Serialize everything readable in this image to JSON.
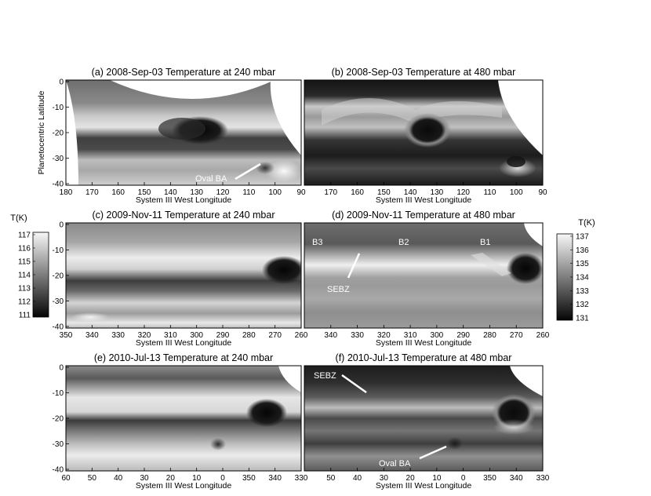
{
  "colors": {
    "frame": "#000000",
    "annotation": "#ffffff",
    "background": "#ffffff"
  },
  "colorbars": [
    {
      "title": "T(K)",
      "ticks": [
        "117",
        "116",
        "115",
        "114",
        "113",
        "112",
        "111"
      ],
      "min": 111,
      "max": 117
    },
    {
      "title": "T(K)",
      "ticks": [
        "137",
        "136",
        "135",
        "134",
        "133",
        "132",
        "131"
      ],
      "min": 131,
      "max": 137
    }
  ],
  "panels": [
    {
      "title": "(a) 2008-Sep-03 Temperature at 240 mbar",
      "xlabel": "System III West Longitude",
      "ylabel": "Planetocentric Latitude",
      "xticks": [
        "180",
        "170",
        "160",
        "150",
        "140",
        "130",
        "120",
        "110",
        "100",
        "90"
      ],
      "yticks": [
        "0",
        "-10",
        "-20",
        "-30",
        "-40"
      ],
      "annotations": [
        {
          "text": "Oval BA"
        }
      ]
    },
    {
      "title": "(b) 2008-Sep-03 Temperature at 480 mbar",
      "xlabel": "System III West Longitude",
      "ylabel": "",
      "xticks": [
        "170",
        "160",
        "150",
        "140",
        "130",
        "120",
        "110",
        "100",
        "90"
      ],
      "yticks": [],
      "annotations": []
    },
    {
      "title": "(c) 2009-Nov-11 Temperature at 240 mbar",
      "xlabel": "System III West Longitude",
      "ylabel": "Planetocentric Latitude",
      "xticks": [
        "350",
        "340",
        "330",
        "320",
        "310",
        "300",
        "290",
        "280",
        "270",
        "260"
      ],
      "yticks": [
        "0",
        "-10",
        "-20",
        "-30",
        "-40"
      ],
      "annotations": []
    },
    {
      "title": "(d) 2009-Nov-11 Temperature at 480 mbar",
      "xlabel": "System III West Longitude",
      "ylabel": "",
      "xticks": [
        "340",
        "330",
        "320",
        "310",
        "300",
        "290",
        "280",
        "270",
        "260"
      ],
      "yticks": [],
      "annotations": [
        {
          "text": "B3"
        },
        {
          "text": "B2"
        },
        {
          "text": "B1"
        },
        {
          "text": "SEBZ"
        }
      ]
    },
    {
      "title": "(e) 2010-Jul-13 Temperature at 240 mbar",
      "xlabel": "System III West Longitude",
      "ylabel": "Planetocentric Latitude",
      "xticks": [
        "60",
        "50",
        "40",
        "30",
        "20",
        "10",
        "0",
        "350",
        "340",
        "330"
      ],
      "yticks": [
        "0",
        "-10",
        "-20",
        "-30",
        "-40"
      ],
      "annotations": []
    },
    {
      "title": "(f) 2010-Jul-13 Temperature at 480 mbar",
      "xlabel": "System III West Longitude",
      "ylabel": "",
      "xticks": [
        "50",
        "40",
        "30",
        "20",
        "10",
        "0",
        "350",
        "340",
        "330"
      ],
      "yticks": [],
      "annotations": [
        {
          "text": "SEBZ"
        },
        {
          "text": "Oval BA"
        }
      ]
    }
  ]
}
